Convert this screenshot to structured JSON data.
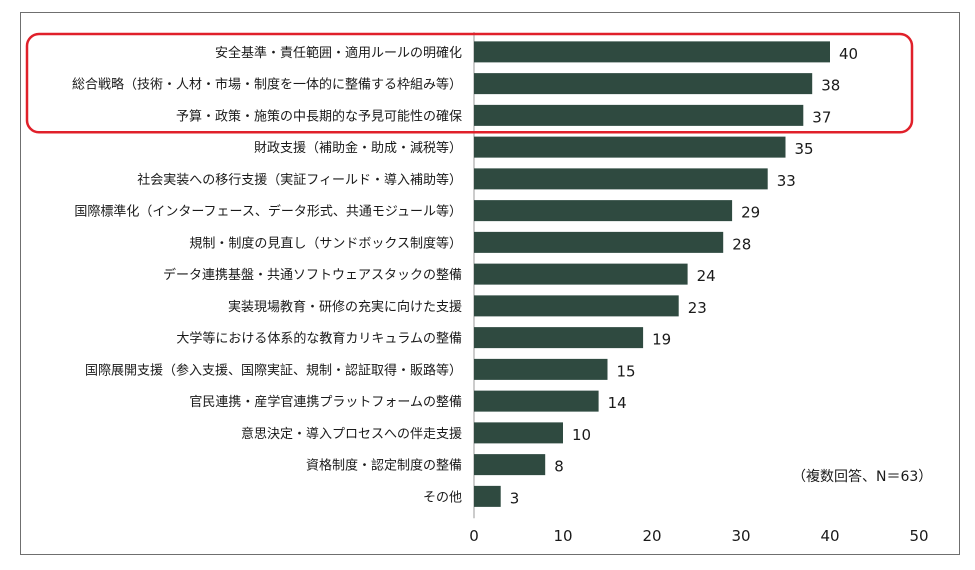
{
  "chart_data": {
    "type": "bar",
    "orientation": "horizontal",
    "title": "",
    "xlabel": "",
    "ylabel": "",
    "note": "（複数回答、N＝63）",
    "xlim": [
      0,
      50
    ],
    "xticks": [
      0,
      10,
      20,
      30,
      40,
      50
    ],
    "grid": false,
    "categories": [
      "安全基準・責任範囲・適用ルールの明確化",
      "総合戦略（技術・人材・市場・制度を一体的に整備する枠組み等）",
      "予算・政策・施策の中長期的な予見可能性の確保",
      "財政支援（補助金・助成・減税等）",
      "社会実装への移行支援（実証フィールド・導入補助等）",
      "国際標準化（インターフェース、データ形式、共通モジュール等）",
      "規制・制度の見直し（サンドボックス制度等）",
      "データ連携基盤・共通ソフトウェアスタックの整備",
      "実装現場教育・研修の充実に向けた支援",
      "大学等における体系的な教育カリキュラムの整備",
      "国際展開支援（参入支援、国際実証、規制・認証取得・販路等）",
      "官民連携・産学官連携プラットフォームの整備",
      "意思決定・導入プロセスへの伴走支援",
      "資格制度・認定制度の整備",
      "その他"
    ],
    "values": [
      40,
      38,
      37,
      35,
      33,
      29,
      28,
      24,
      23,
      19,
      15,
      14,
      10,
      8,
      3
    ],
    "highlighted_categories": [
      0,
      1,
      2
    ],
    "bar_color": "#2f4a40",
    "highlight_color": "#e0202a"
  }
}
